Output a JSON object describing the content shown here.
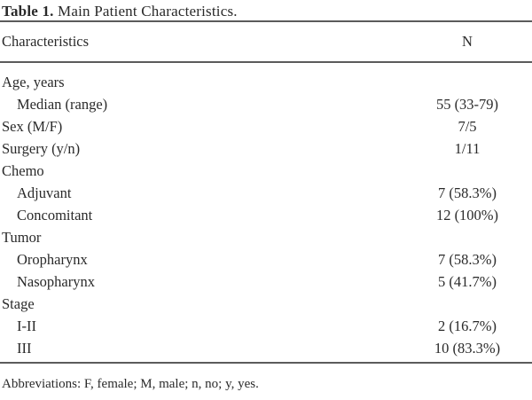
{
  "title": {
    "label": "Table 1.",
    "text": " Main Patient Characteristics."
  },
  "table": {
    "columns": {
      "characteristics": "Characteristics",
      "n": "N"
    },
    "rows": [
      {
        "label": "Age, years",
        "value": "",
        "indent": false
      },
      {
        "label": "Median (range)",
        "value": "55 (33-79)",
        "indent": true
      },
      {
        "label": "Sex (M/F)",
        "value": "7/5",
        "indent": false
      },
      {
        "label": "Surgery (y/n)",
        "value": "1/11",
        "indent": false
      },
      {
        "label": "Chemo",
        "value": "",
        "indent": false
      },
      {
        "label": "Adjuvant",
        "value": "7 (58.3%)",
        "indent": true
      },
      {
        "label": "Concomitant",
        "value": "12 (100%)",
        "indent": true
      },
      {
        "label": "Tumor",
        "value": "",
        "indent": false
      },
      {
        "label": "Oropharynx",
        "value": "7 (58.3%)",
        "indent": true
      },
      {
        "label": "Nasopharynx",
        "value": "5 (41.7%)",
        "indent": true
      },
      {
        "label": "Stage",
        "value": "",
        "indent": false
      },
      {
        "label": "I-II",
        "value": "2 (16.7%)",
        "indent": true
      },
      {
        "label": "III",
        "value": "10 (83.3%)",
        "indent": true
      }
    ],
    "footnote": "Abbreviations: F, female; M, male; n, no; y, yes."
  },
  "colors": {
    "background": "#ffffff",
    "text": "#2a2a2a",
    "rule": "#5b5b5b"
  }
}
